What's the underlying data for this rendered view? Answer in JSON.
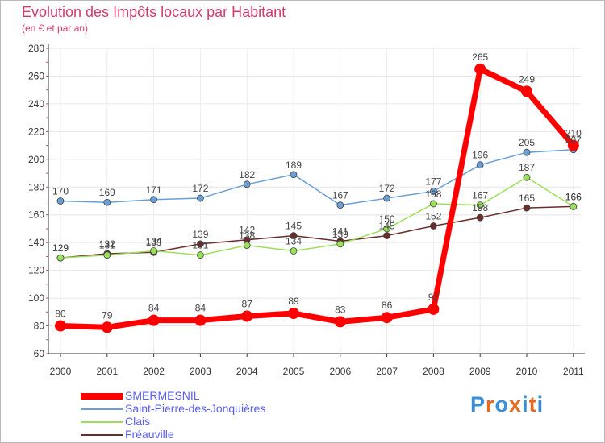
{
  "header": {
    "title": "Evolution des Impôts locaux par Habitant",
    "subtitle": "(en € et par an)"
  },
  "logo": {
    "letters": [
      "P",
      "r",
      "o",
      "x",
      "i",
      "t",
      "i"
    ],
    "colors": [
      "#3a8fd8",
      "#e86a1c",
      "#3a8fd8",
      "#e86a1c",
      "#3a8fd8",
      "#e86a1c",
      "#3a8fd8"
    ]
  },
  "chart_data": {
    "type": "line",
    "title": "Evolution des Impôts locaux par Habitant",
    "subtitle": "(en € et par an)",
    "xlabel": "",
    "ylabel": "",
    "ylim": [
      60,
      280
    ],
    "yticks": [
      60,
      80,
      100,
      120,
      140,
      160,
      180,
      200,
      220,
      240,
      260,
      280
    ],
    "categories": [
      "2000",
      "2001",
      "2002",
      "2003",
      "2004",
      "2005",
      "2006",
      "2007",
      "2008",
      "2009",
      "2010",
      "2011"
    ],
    "grid": true,
    "legend_position": "bottom-left",
    "series": [
      {
        "name": "Fréauville",
        "color": "#6b2c2c",
        "width": 1.5,
        "marker": 4,
        "labels": true,
        "values": [
          129,
          132,
          133,
          139,
          142,
          145,
          141,
          145,
          152,
          158,
          165,
          166
        ]
      },
      {
        "name": "Clais",
        "color": "#9be05a",
        "width": 1.5,
        "marker": 4,
        "labels": true,
        "values": [
          129,
          131,
          134,
          131,
          138,
          134,
          139,
          150,
          168,
          167,
          187,
          166
        ]
      },
      {
        "name": "Saint-Pierre-des-Jonquières",
        "color": "#6a9fd6",
        "width": 1.5,
        "marker": 4,
        "labels": true,
        "values": [
          170,
          169,
          171,
          172,
          182,
          189,
          167,
          172,
          177,
          196,
          205,
          207
        ]
      },
      {
        "name": "SMERMESNIL",
        "color": "#ff0000",
        "width": 7,
        "marker": 7,
        "labels": true,
        "values": [
          80,
          79,
          84,
          84,
          87,
          89,
          83,
          86,
          92,
          265,
          249,
          210
        ]
      }
    ],
    "legend_order": [
      "SMERMESNIL",
      "Saint-Pierre-des-Jonquières",
      "Clais",
      "Fréauville"
    ]
  }
}
